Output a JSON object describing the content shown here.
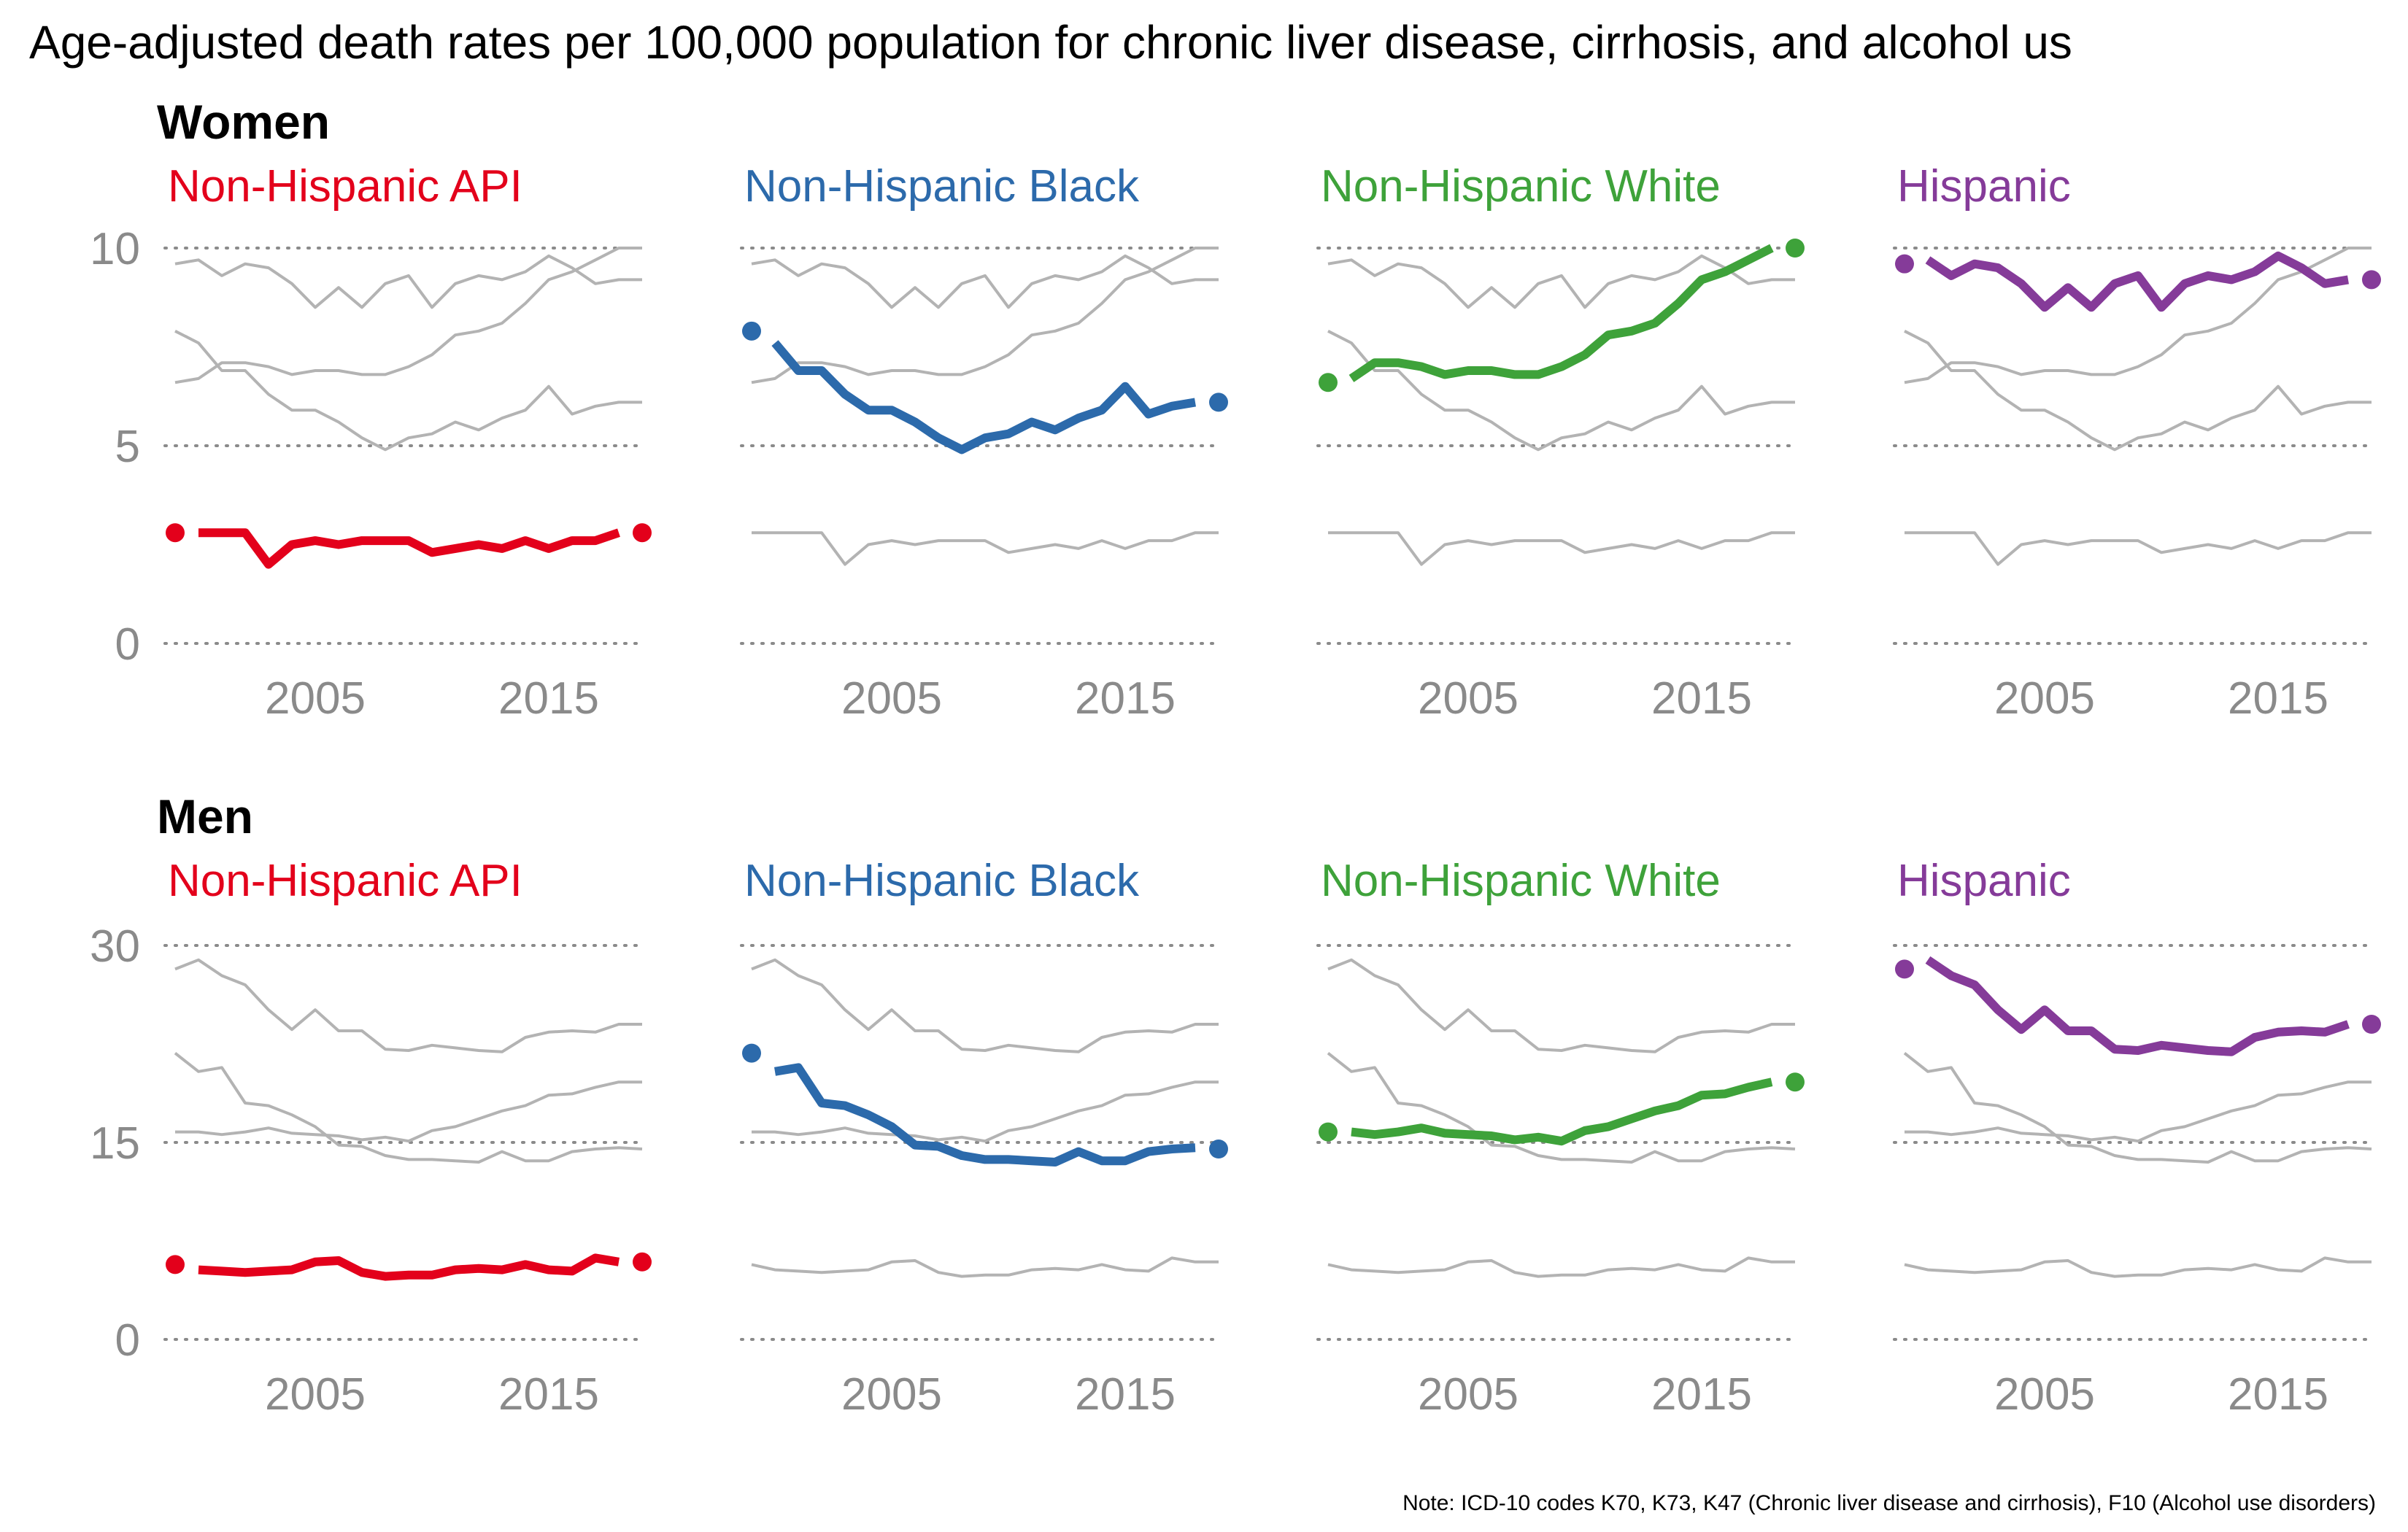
{
  "title": "Age-adjusted death rates per 100,000 population for chronic liver disease, cirrhosis, and alcohol us",
  "note": "Note: ICD-10 codes K70, K73, K47 (Chronic liver disease and cirrhosis), F10 (Alcohol use disorders)",
  "colors": {
    "Non-Hispanic API": "#e3001b",
    "Non-Hispanic Black": "#2c6aab",
    "Non-Hispanic White": "#3ea23a",
    "Hispanic": "#853b99",
    "background_lines": "#b3b3b3",
    "axis_text": "#8a8a8a"
  },
  "chart_data": [
    {
      "type": "line",
      "facet": "Women",
      "panels": [
        "Non-Hispanic API",
        "Non-Hispanic Black",
        "Non-Hispanic White",
        "Hispanic"
      ],
      "x": [
        1999,
        2000,
        2001,
        2002,
        2003,
        2004,
        2005,
        2006,
        2007,
        2008,
        2009,
        2010,
        2011,
        2012,
        2013,
        2014,
        2015,
        2016,
        2017,
        2018,
        2019
      ],
      "xticks": [
        2005,
        2015
      ],
      "yticks": [
        0,
        5,
        10
      ],
      "ylim": [
        0,
        10
      ],
      "grid": "horizontal dotted",
      "series": [
        {
          "name": "Non-Hispanic API",
          "values": [
            2.8,
            2.8,
            2.8,
            2.8,
            2.0,
            2.5,
            2.6,
            2.5,
            2.6,
            2.6,
            2.6,
            2.3,
            2.4,
            2.5,
            2.4,
            2.6,
            2.4,
            2.6,
            2.6,
            2.8,
            2.8
          ]
        },
        {
          "name": "Non-Hispanic Black",
          "values": [
            7.9,
            7.6,
            6.9,
            6.9,
            6.3,
            5.9,
            5.9,
            5.6,
            5.2,
            4.9,
            5.2,
            5.3,
            5.6,
            5.4,
            5.7,
            5.9,
            6.5,
            5.8,
            6.0,
            6.1,
            6.1
          ]
        },
        {
          "name": "Non-Hispanic White",
          "values": [
            6.6,
            6.7,
            7.1,
            7.1,
            7.0,
            6.8,
            6.9,
            6.9,
            6.8,
            6.8,
            7.0,
            7.3,
            7.8,
            7.9,
            8.1,
            8.6,
            9.2,
            9.4,
            9.7,
            10.0,
            10.0
          ]
        },
        {
          "name": "Hispanic",
          "values": [
            9.6,
            9.7,
            9.3,
            9.6,
            9.5,
            9.1,
            8.5,
            9.0,
            8.5,
            9.1,
            9.3,
            8.5,
            9.1,
            9.3,
            9.2,
            9.4,
            9.8,
            9.5,
            9.1,
            9.2,
            9.2
          ]
        }
      ]
    },
    {
      "type": "line",
      "facet": "Men",
      "panels": [
        "Non-Hispanic API",
        "Non-Hispanic Black",
        "Non-Hispanic White",
        "Hispanic"
      ],
      "x": [
        1999,
        2000,
        2001,
        2002,
        2003,
        2004,
        2005,
        2006,
        2007,
        2008,
        2009,
        2010,
        2011,
        2012,
        2013,
        2014,
        2015,
        2016,
        2017,
        2018,
        2019
      ],
      "xticks": [
        2005,
        2015
      ],
      "yticks": [
        0,
        15,
        30
      ],
      "ylim": [
        0,
        30
      ],
      "grid": "horizontal dotted",
      "series": [
        {
          "name": "Non-Hispanic API",
          "values": [
            5.7,
            5.3,
            5.2,
            5.1,
            5.2,
            5.3,
            5.9,
            6.0,
            5.1,
            4.8,
            4.9,
            4.9,
            5.3,
            5.4,
            5.3,
            5.7,
            5.3,
            5.2,
            6.2,
            5.9,
            5.9
          ]
        },
        {
          "name": "Non-Hispanic Black",
          "values": [
            21.8,
            20.4,
            20.7,
            18.0,
            17.8,
            17.1,
            16.2,
            14.8,
            14.7,
            14.0,
            13.7,
            13.7,
            13.6,
            13.5,
            14.3,
            13.6,
            13.6,
            14.3,
            14.5,
            14.6,
            14.5
          ]
        },
        {
          "name": "Non-Hispanic White",
          "values": [
            15.8,
            15.8,
            15.6,
            15.8,
            16.1,
            15.7,
            15.6,
            15.5,
            15.2,
            15.4,
            15.1,
            15.9,
            16.2,
            16.8,
            17.4,
            17.8,
            18.6,
            18.7,
            19.2,
            19.6,
            19.6
          ]
        },
        {
          "name": "Hispanic",
          "values": [
            28.2,
            28.9,
            27.7,
            27.0,
            25.1,
            23.6,
            25.1,
            23.5,
            23.5,
            22.1,
            22.0,
            22.4,
            22.2,
            22.0,
            21.9,
            23.0,
            23.4,
            23.5,
            23.4,
            24.0,
            24.0
          ]
        }
      ]
    }
  ]
}
